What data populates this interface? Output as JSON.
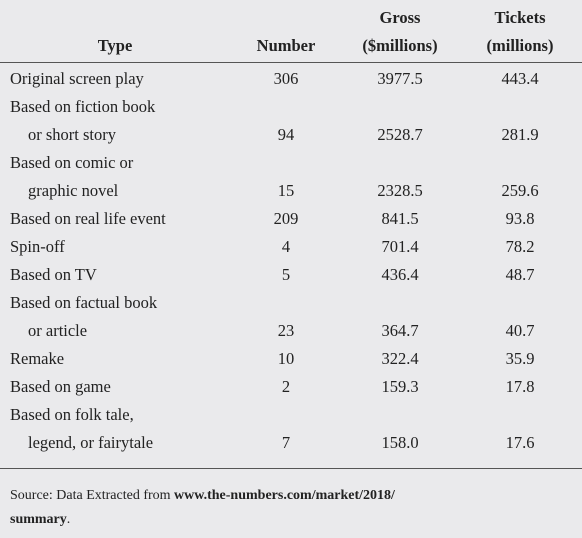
{
  "table": {
    "headers": {
      "type": "Type",
      "number": "Number",
      "gross_line1": "Gross",
      "gross_line2": "($millions)",
      "tickets_line1": "Tickets",
      "tickets_line2": "(millions)"
    },
    "rows": [
      {
        "type_line1": "Original screen play",
        "type_line2": "",
        "number": "306",
        "gross": "3977.5",
        "tickets": "443.4"
      },
      {
        "type_line1": "Based on fiction book",
        "type_line2": "or short story",
        "number": "94",
        "gross": "2528.7",
        "tickets": "281.9"
      },
      {
        "type_line1": "Based on comic or",
        "type_line2": "graphic novel",
        "number": "15",
        "gross": "2328.5",
        "tickets": "259.6"
      },
      {
        "type_line1": "Based on real life event",
        "type_line2": "",
        "number": "209",
        "gross": "841.5",
        "tickets": "93.8"
      },
      {
        "type_line1": "Spin-off",
        "type_line2": "",
        "number": "4",
        "gross": "701.4",
        "tickets": "78.2"
      },
      {
        "type_line1": "Based on TV",
        "type_line2": "",
        "number": "5",
        "gross": "436.4",
        "tickets": "48.7"
      },
      {
        "type_line1": "Based on factual book",
        "type_line2": "or article",
        "number": "23",
        "gross": "364.7",
        "tickets": "40.7"
      },
      {
        "type_line1": "Remake",
        "type_line2": "",
        "number": "10",
        "gross": "322.4",
        "tickets": "35.9"
      },
      {
        "type_line1": "Based on game",
        "type_line2": "",
        "number": "2",
        "gross": "159.3",
        "tickets": "17.8"
      },
      {
        "type_line1": "Based on folk tale,",
        "type_line2": "legend, or fairytale",
        "number": "7",
        "gross": "158.0",
        "tickets": "17.6"
      }
    ]
  },
  "source": {
    "prefix": "Source: Data Extracted from ",
    "link_line1": "www.the-numbers.com/market/2018/",
    "link_line2": "summary",
    "suffix": "."
  }
}
